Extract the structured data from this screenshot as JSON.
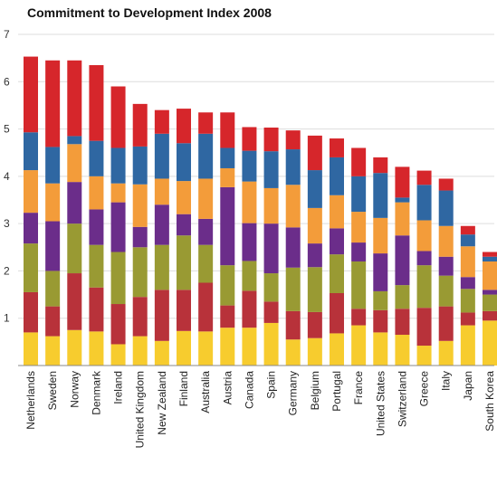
{
  "chart_data": {
    "type": "bar",
    "stacked": true,
    "title": "Commitment to Development Index 2008",
    "xlabel": "",
    "ylabel": "",
    "ylim": [
      0,
      7
    ],
    "yticks": [
      1,
      2,
      3,
      4,
      5,
      6,
      7
    ],
    "grid": true,
    "legend": "none",
    "categories": [
      "Netherlands",
      "Sweden",
      "Norway",
      "Denmark",
      "Ireland",
      "United Kingdom",
      "New Zealand",
      "Finland",
      "Australia",
      "Austria",
      "Canada",
      "Spain",
      "Germany",
      "Belgium",
      "Portugal",
      "France",
      "United States",
      "Switzerland",
      "Greece",
      "Italy",
      "Japan",
      "South Korea"
    ],
    "series": [
      {
        "color": "#f7cc2e",
        "values": [
          0.7,
          0.62,
          0.75,
          0.72,
          0.45,
          0.62,
          0.52,
          0.73,
          0.72,
          0.8,
          0.8,
          0.9,
          0.55,
          0.58,
          0.68,
          0.85,
          0.7,
          0.65,
          0.42,
          0.52,
          0.85,
          0.95
        ]
      },
      {
        "color": "#b8323a",
        "values": [
          0.85,
          0.63,
          1.2,
          0.93,
          0.85,
          0.83,
          1.08,
          0.87,
          1.03,
          0.47,
          0.78,
          0.45,
          0.6,
          0.55,
          0.85,
          0.35,
          0.47,
          0.55,
          0.8,
          0.73,
          0.27,
          0.2
        ]
      },
      {
        "color": "#999a33",
        "values": [
          1.03,
          0.75,
          1.05,
          0.9,
          1.1,
          1.05,
          0.95,
          1.15,
          0.8,
          0.85,
          0.63,
          0.6,
          0.92,
          0.95,
          0.82,
          1.0,
          0.4,
          0.5,
          0.9,
          0.65,
          0.5,
          0.35
        ]
      },
      {
        "color": "#6b2d8a",
        "values": [
          0.65,
          1.05,
          0.88,
          0.75,
          1.05,
          0.43,
          0.85,
          0.45,
          0.55,
          1.65,
          0.8,
          1.05,
          0.85,
          0.5,
          0.55,
          0.4,
          0.8,
          1.05,
          0.3,
          0.4,
          0.25,
          0.1
        ]
      },
      {
        "color": "#f39c3a",
        "values": [
          0.9,
          0.8,
          0.8,
          0.7,
          0.4,
          0.9,
          0.55,
          0.7,
          0.85,
          0.4,
          0.88,
          0.75,
          0.9,
          0.75,
          0.7,
          0.65,
          0.75,
          0.7,
          0.65,
          0.65,
          0.65,
          0.6
        ]
      },
      {
        "color": "#2f67a2",
        "values": [
          0.8,
          0.77,
          0.17,
          0.75,
          0.75,
          0.8,
          0.95,
          0.8,
          0.95,
          0.43,
          0.65,
          0.78,
          0.75,
          0.8,
          0.8,
          0.75,
          0.95,
          0.1,
          0.75,
          0.75,
          0.25,
          0.1
        ]
      },
      {
        "color": "#d6262b",
        "values": [
          1.6,
          1.83,
          1.6,
          1.6,
          1.3,
          0.9,
          0.5,
          0.73,
          0.45,
          0.75,
          0.5,
          0.5,
          0.4,
          0.73,
          0.4,
          0.6,
          0.33,
          0.65,
          0.3,
          0.25,
          0.18,
          0.1
        ]
      }
    ]
  }
}
